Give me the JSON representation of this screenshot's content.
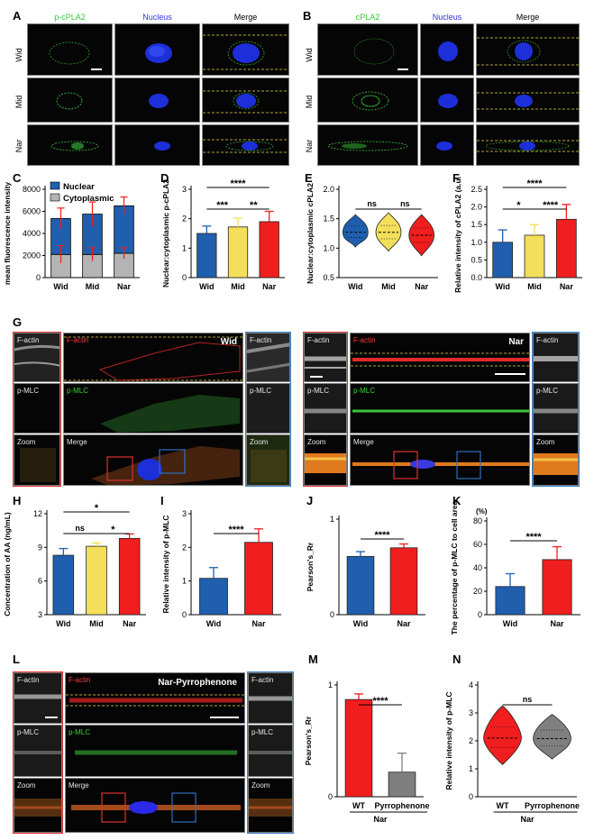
{
  "colors": {
    "wid": "#1f5fae",
    "mid": "#f4df5a",
    "nar": "#f01e1e",
    "cyto": "#b4b4b4",
    "pyr": "#7f7f7f",
    "gfp": "#3ac43a",
    "dapi": "#2233dd",
    "actin": "#e02a2a"
  },
  "panelA": {
    "label": "A",
    "headers": [
      "p-cPLA2",
      "Nucleus",
      "Merge"
    ],
    "rows": [
      "Wid",
      "Mid",
      "Nar"
    ]
  },
  "panelB": {
    "label": "B",
    "headers": [
      "cPLA2",
      "Nucleus",
      "Merge"
    ],
    "rows": [
      "Wid",
      "Mid",
      "Nar"
    ]
  },
  "panelG": {
    "label": "G",
    "left": {
      "title": "Wid",
      "side": [
        "F-actin",
        "p-MLC",
        "Zoom"
      ],
      "center": [
        "F-actin",
        "p-MLC",
        "Merge"
      ],
      "zoom": [
        "F-actin",
        "p-MLC",
        "Zoom"
      ]
    },
    "right": {
      "title": "Nar",
      "side": [
        "F-actin",
        "p-MLC",
        "Zoom"
      ],
      "center": [
        "F-actin",
        "p-MLC",
        "Merge"
      ],
      "zoom": [
        "F-actin",
        "p-MLC",
        "Zoom"
      ]
    }
  },
  "panelL": {
    "label": "L",
    "title": "Nar-Pyrrophenone",
    "side": [
      "F-actin",
      "p-MLC",
      "Zoom"
    ],
    "center": [
      "F-actin",
      "p-MLC",
      "Merge"
    ],
    "zoom": [
      "F-actin",
      "p-MLC",
      "Zoom"
    ]
  },
  "chart_data": [
    {
      "id": "C",
      "label": "C",
      "type": "bar",
      "stacked": true,
      "categories": [
        "Wid",
        "Mid",
        "Nar"
      ],
      "series": [
        {
          "name": "Cytoplasmic",
          "values": [
            2100,
            2100,
            2200
          ],
          "err": [
            800,
            600,
            500
          ]
        },
        {
          "name": "Nuclear",
          "values": [
            3250,
            3650,
            4300
          ],
          "err": [
            950,
            1100,
            800
          ]
        }
      ],
      "ylabel": "mean fluorescence intensity",
      "ylim": [
        0,
        8000
      ],
      "yticks": [
        "0",
        "2000",
        "4000",
        "6000",
        "8000"
      ],
      "legend": "top-left"
    },
    {
      "id": "D",
      "label": "D",
      "type": "bar",
      "categories": [
        "Wid",
        "Mid",
        "Nar"
      ],
      "values": [
        1.5,
        1.72,
        1.9
      ],
      "err": [
        0.25,
        0.3,
        0.35
      ],
      "ylabel": "Nuclear:cytoplasmic p-cPLA2",
      "ylim": [
        0,
        3
      ],
      "yticks": [
        "0",
        "1",
        "2",
        "3"
      ],
      "annotations": [
        {
          "text": "***",
          "from": "Wid",
          "to": "Mid"
        },
        {
          "text": "**",
          "from": "Mid",
          "to": "Nar"
        },
        {
          "text": "****",
          "from": "Wid",
          "to": "Nar"
        }
      ]
    },
    {
      "id": "E",
      "label": "E",
      "type": "violin",
      "categories": [
        "Wid",
        "Mid",
        "Nar"
      ],
      "median": [
        1.27,
        1.27,
        1.22
      ],
      "range": [
        [
          1.02,
          1.57
        ],
        [
          0.95,
          1.6
        ],
        [
          0.87,
          1.57
        ]
      ],
      "ylabel": "Nuclear:cytoplasmic cPLA2",
      "ylim": [
        0.5,
        2.0
      ],
      "yticks": [
        "0.5",
        "1.0",
        "1.5",
        "2.0"
      ],
      "annotations": [
        {
          "text": "ns",
          "from": "Wid",
          "to": "Mid"
        },
        {
          "text": "ns",
          "from": "Mid",
          "to": "Nar"
        }
      ]
    },
    {
      "id": "F",
      "label": "F",
      "type": "bar",
      "categories": [
        "Wid",
        "Mid",
        "Nar"
      ],
      "values": [
        1.0,
        1.2,
        1.65
      ],
      "err": [
        0.35,
        0.3,
        0.42
      ],
      "ylabel": "Relative intensity of cPLA2 (a.u.)",
      "ylim": [
        0,
        2.5
      ],
      "yticks": [
        "0.0",
        "0.5",
        "1.0",
        "1.5",
        "2.0",
        "2.5"
      ],
      "annotations": [
        {
          "text": "*",
          "from": "Wid",
          "to": "Mid"
        },
        {
          "text": "****",
          "from": "Mid",
          "to": "Nar"
        },
        {
          "text": "****",
          "from": "Wid",
          "to": "Nar"
        }
      ]
    },
    {
      "id": "H",
      "label": "H",
      "type": "bar",
      "categories": [
        "Wid",
        "Mid",
        "Nar"
      ],
      "values": [
        8.3,
        9.1,
        9.8
      ],
      "err": [
        0.6,
        0.3,
        0.4
      ],
      "ylabel": "Concentration of AA (ng/mL)",
      "ylim": [
        3,
        12
      ],
      "yticks": [
        "3",
        "6",
        "9",
        "12"
      ],
      "annotations": [
        {
          "text": "ns",
          "from": "Wid",
          "to": "Mid"
        },
        {
          "text": "*",
          "from": "Mid",
          "to": "Nar"
        },
        {
          "text": "*",
          "from": "Wid",
          "to": "Nar"
        }
      ]
    },
    {
      "id": "I",
      "label": "I",
      "type": "bar",
      "categories": [
        "Wid",
        "Nar"
      ],
      "values": [
        1.08,
        2.15
      ],
      "err": [
        0.32,
        0.4
      ],
      "ylabel": "Relative intensity of p-MLC",
      "ylim": [
        0,
        3
      ],
      "yticks": [
        "0",
        "1",
        "2",
        "3"
      ],
      "annotations": [
        {
          "text": "****",
          "from": "Wid",
          "to": "Nar"
        }
      ]
    },
    {
      "id": "J",
      "label": "J",
      "type": "bar",
      "categories": [
        "Wid",
        "Nar"
      ],
      "values": [
        0.61,
        0.7
      ],
      "err": [
        0.05,
        0.04
      ],
      "ylabel": "Pearson's_Rr",
      "ylim": [
        0,
        1
      ],
      "yticks": [
        "0",
        "1"
      ],
      "annotations": [
        {
          "text": "****",
          "from": "Wid",
          "to": "Nar"
        }
      ]
    },
    {
      "id": "K",
      "label": "K",
      "type": "bar",
      "categories": [
        "Wid",
        "Nar"
      ],
      "values": [
        24,
        47
      ],
      "err": [
        11,
        11
      ],
      "ylabel": "The percentage of p-MLC to cell area",
      "unit": "(%)",
      "ylim": [
        0,
        80
      ],
      "yticks": [
        "0",
        "20",
        "40",
        "60",
        "80"
      ],
      "annotations": [
        {
          "text": "****",
          "from": "Wid",
          "to": "Nar"
        }
      ]
    },
    {
      "id": "M",
      "label": "M",
      "type": "bar",
      "categories": [
        "WT",
        "Pyrrophenone"
      ],
      "group": "Nar",
      "values": [
        0.87,
        0.22
      ],
      "err": [
        0.05,
        0.17
      ],
      "ylabel": "Pearson's_Rr",
      "ylim": [
        0,
        1
      ],
      "yticks": [
        "0",
        "1"
      ],
      "annotations": [
        {
          "text": "****",
          "from": "WT",
          "to": "Pyrrophenone"
        }
      ]
    },
    {
      "id": "N",
      "label": "N",
      "type": "violin",
      "categories": [
        "WT",
        "Pyrrophenone"
      ],
      "group": "Nar",
      "median": [
        2.1,
        2.08
      ],
      "range": [
        [
          1.15,
          3.25
        ],
        [
          1.35,
          2.95
        ]
      ],
      "ylabel": "Relative intensity of p-MLC",
      "ylim": [
        0,
        4
      ],
      "yticks": [
        "0",
        "1",
        "2",
        "3",
        "4"
      ],
      "annotations": [
        {
          "text": "ns",
          "from": "WT",
          "to": "Pyrrophenone"
        }
      ]
    }
  ]
}
